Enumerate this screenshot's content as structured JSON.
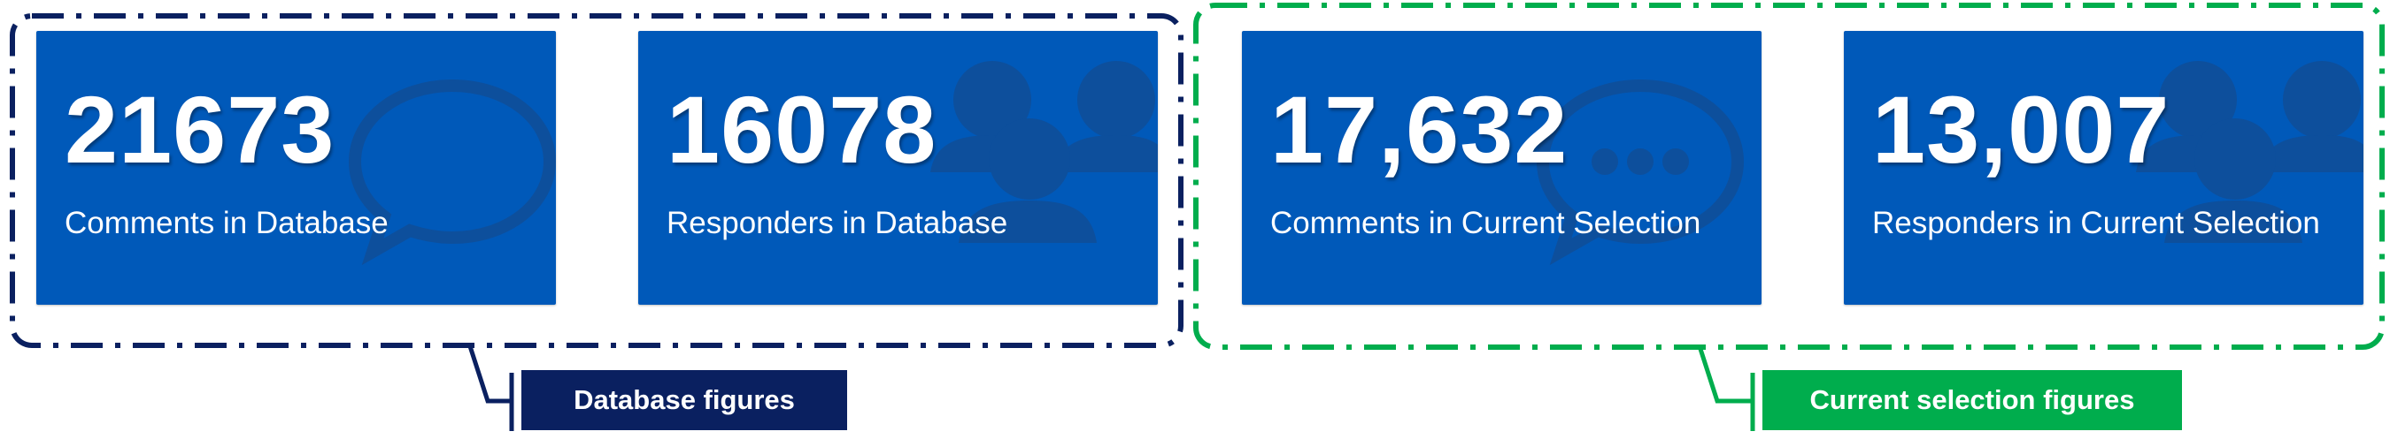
{
  "colors": {
    "card_bg": "#0059b9",
    "database_group": "#0a2060",
    "selection_group": "#00ad4d",
    "text": "#ffffff"
  },
  "groups": {
    "database": {
      "label": "Database figures",
      "cards": [
        {
          "value": "21673",
          "label": "Comments in Database",
          "icon": "comment-icon"
        },
        {
          "value": "16078",
          "label": "Responders in Database",
          "icon": "users-icon"
        }
      ]
    },
    "selection": {
      "label": "Current selection figures",
      "cards": [
        {
          "value": "17,632",
          "label": "Comments in Current Selection",
          "icon": "comment-dots-icon"
        },
        {
          "value": "13,007",
          "label": "Responders in Current Selection",
          "icon": "users-icon"
        }
      ]
    }
  }
}
